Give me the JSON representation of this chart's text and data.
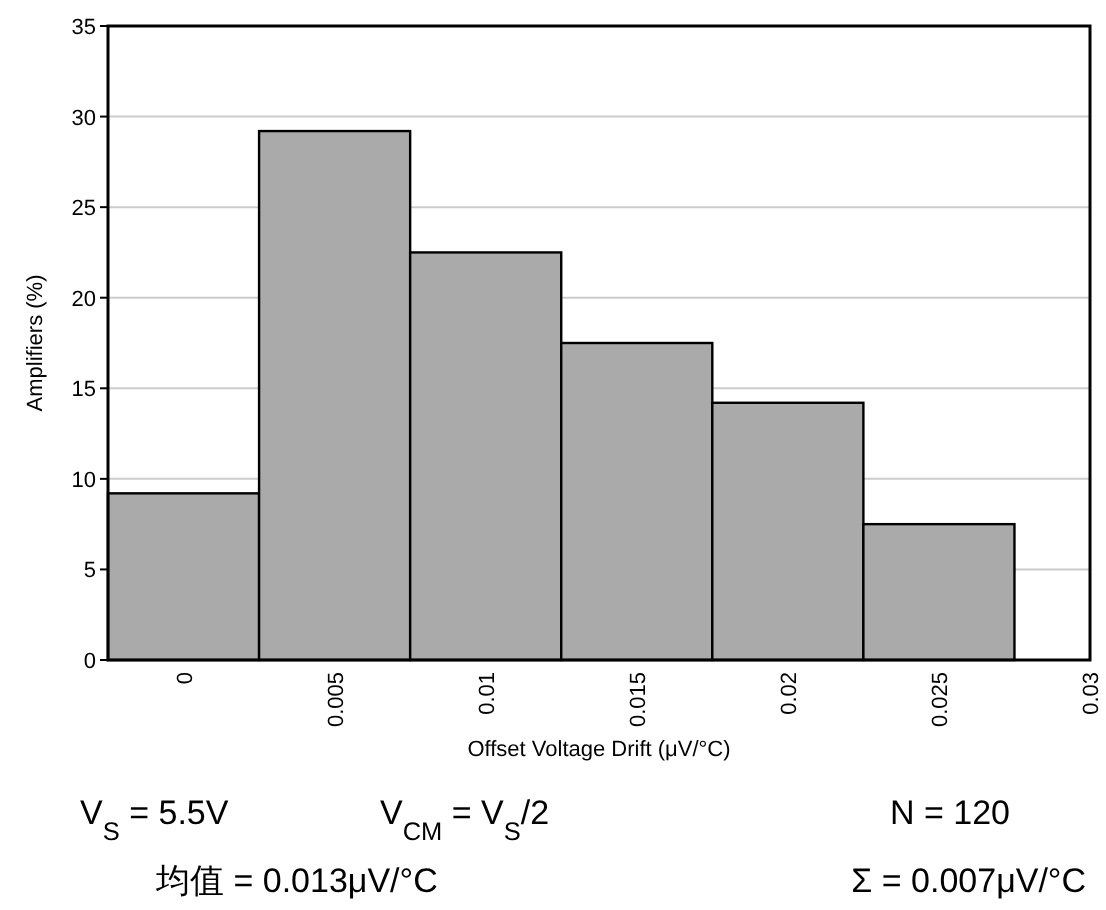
{
  "chart_data": {
    "type": "histogram",
    "xlabel": "Offset Voltage Drift (μV/°C)",
    "ylabel": "Amplifiers (%)",
    "bins": [
      -0.0025,
      0.0025,
      0.0075,
      0.0125,
      0.0175,
      0.0225,
      0.0275
    ],
    "values": [
      9.2,
      29.2,
      22.5,
      17.5,
      14.2,
      7.5
    ],
    "color": "#aaaaaa",
    "xlim": [
      -0.0025,
      0.03
    ],
    "xticks": [
      0,
      0.005,
      0.01,
      0.015,
      0.02,
      0.025,
      0.03
    ],
    "ylim": [
      0,
      35
    ],
    "yticks": [
      0,
      5,
      10,
      15,
      20,
      25,
      30,
      35
    ],
    "grid": "y",
    "annotations": [
      "V$_{S}$ = 5.5V",
      "V$_{CM}$ = V$_{S}$/2",
      "N = 120",
      "均值 = 0.013μV/°C",
      "Σ = 0.007μV/°C"
    ]
  }
}
